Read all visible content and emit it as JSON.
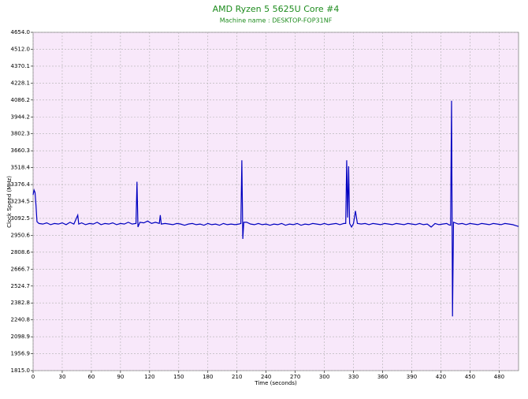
{
  "chart_data": {
    "type": "line",
    "title": "AMD Ryzen 5 5625U Core #4",
    "subtitle": "Machine name : DESKTOP-FOP31NF",
    "x_label": "Time (seconds)",
    "y_label": "Clock Speed (MHz)",
    "xlim": [
      0,
      500
    ],
    "ylim": [
      1815,
      4654
    ],
    "xticks": [
      0,
      30,
      60,
      90,
      120,
      150,
      180,
      210,
      240,
      270,
      300,
      330,
      360,
      390,
      420,
      450,
      480
    ],
    "yticks": [
      {
        "value": 1815,
        "label": "1815.0"
      },
      1956.9,
      2098.9,
      2240.8,
      2382.8,
      2524.7,
      2666.7,
      2808.6,
      2950.6,
      3092.5,
      3234.5,
      3376.4,
      3518.4,
      3660.3,
      3802.3,
      3944.2,
      4086.2,
      4228.1,
      4370.1,
      {
        "value": 4512,
        "label": "4512.0"
      },
      {
        "value": 4654,
        "label": "4654.0"
      }
    ],
    "grid": true,
    "series": [
      {
        "color": "#0000c0",
        "x": [
          0,
          1,
          2,
          3,
          4,
          6,
          10,
          14,
          18,
          22,
          26,
          30,
          34,
          38,
          42,
          46,
          47,
          50,
          54,
          58,
          62,
          66,
          70,
          74,
          78,
          82,
          86,
          90,
          94,
          98,
          102,
          106,
          107,
          108,
          110,
          114,
          118,
          122,
          126,
          130,
          131,
          132,
          136,
          140,
          144,
          148,
          152,
          156,
          160,
          164,
          168,
          172,
          176,
          180,
          184,
          188,
          192,
          196,
          200,
          204,
          208,
          212,
          214,
          215,
          216,
          217,
          220,
          224,
          228,
          232,
          236,
          240,
          244,
          248,
          252,
          256,
          260,
          264,
          268,
          272,
          276,
          280,
          284,
          288,
          292,
          296,
          300,
          304,
          308,
          312,
          316,
          320,
          322,
          323,
          324,
          325,
          326,
          328,
          330,
          332,
          334,
          338,
          342,
          346,
          350,
          354,
          358,
          362,
          366,
          370,
          374,
          378,
          382,
          386,
          390,
          394,
          398,
          402,
          406,
          410,
          414,
          418,
          422,
          426,
          428,
          430,
          431,
          432,
          433,
          438,
          442,
          446,
          450,
          454,
          458,
          462,
          466,
          470,
          474,
          478,
          482,
          486,
          490,
          494,
          498,
          500
        ],
        "values": [
          3290,
          3330,
          3310,
          3200,
          3065,
          3050,
          3045,
          3055,
          3040,
          3050,
          3045,
          3055,
          3040,
          3060,
          3045,
          3120,
          3045,
          3055,
          3040,
          3050,
          3045,
          3060,
          3040,
          3050,
          3045,
          3055,
          3040,
          3050,
          3045,
          3060,
          3045,
          3050,
          3400,
          3020,
          3060,
          3055,
          3070,
          3050,
          3060,
          3050,
          3120,
          3045,
          3050,
          3045,
          3040,
          3050,
          3045,
          3035,
          3045,
          3050,
          3040,
          3045,
          3035,
          3050,
          3040,
          3045,
          3035,
          3050,
          3040,
          3045,
          3040,
          3045,
          3050,
          3580,
          2920,
          3060,
          3060,
          3045,
          3040,
          3050,
          3040,
          3045,
          3035,
          3045,
          3040,
          3050,
          3035,
          3045,
          3040,
          3050,
          3035,
          3045,
          3040,
          3050,
          3045,
          3040,
          3050,
          3040,
          3045,
          3050,
          3040,
          3050,
          3050,
          3580,
          3100,
          3530,
          3050,
          3020,
          3050,
          3155,
          3050,
          3045,
          3050,
          3040,
          3050,
          3045,
          3040,
          3050,
          3045,
          3040,
          3050,
          3045,
          3040,
          3050,
          3045,
          3040,
          3050,
          3040,
          3045,
          3020,
          3050,
          3040,
          3045,
          3050,
          3040,
          3035,
          4080,
          2270,
          3060,
          3045,
          3050,
          3040,
          3050,
          3045,
          3040,
          3050,
          3045,
          3040,
          3050,
          3045,
          3040,
          3050,
          3045,
          3040,
          3030,
          3025
        ]
      }
    ]
  }
}
